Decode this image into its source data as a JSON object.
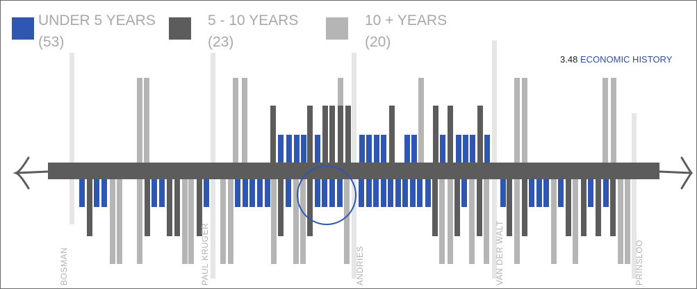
{
  "page_ref": {
    "number": "3.48",
    "title": "ECONOMIC HISTORY"
  },
  "legend": [
    {
      "label": "UNDER 5 YEARS",
      "count": "(53)",
      "color": "#2f56b0"
    },
    {
      "label": "5 - 10 YEARS",
      "count": "(23)",
      "color": "#5c5c5c"
    },
    {
      "label": "10 + YEARS",
      "count": "(20)",
      "color": "#b5b5b5"
    }
  ],
  "chart_data": {
    "type": "bar",
    "title": "",
    "xlabel": "",
    "ylabel": "",
    "description_axis": "street timeline",
    "categories_streets": [
      "BOSMAN",
      "PAUL KRUGER",
      "ANDRIES",
      "VAN DER WALT",
      "PRINSLOO"
    ],
    "colors": {
      "under_5": "#2f56b0",
      "5_10": "#5c5c5c",
      "10_plus": "#b5b5b5",
      "street": "#e6e6e6",
      "axis": "#5c5c5c"
    },
    "series": [
      {
        "name": "UNDER 5 YEARS",
        "count": 53
      },
      {
        "name": "5 - 10 YEARS",
        "count": 23
      },
      {
        "name": "10 + YEARS",
        "count": 20
      }
    ],
    "highlight": "circle around central under-5-years cluster"
  }
}
